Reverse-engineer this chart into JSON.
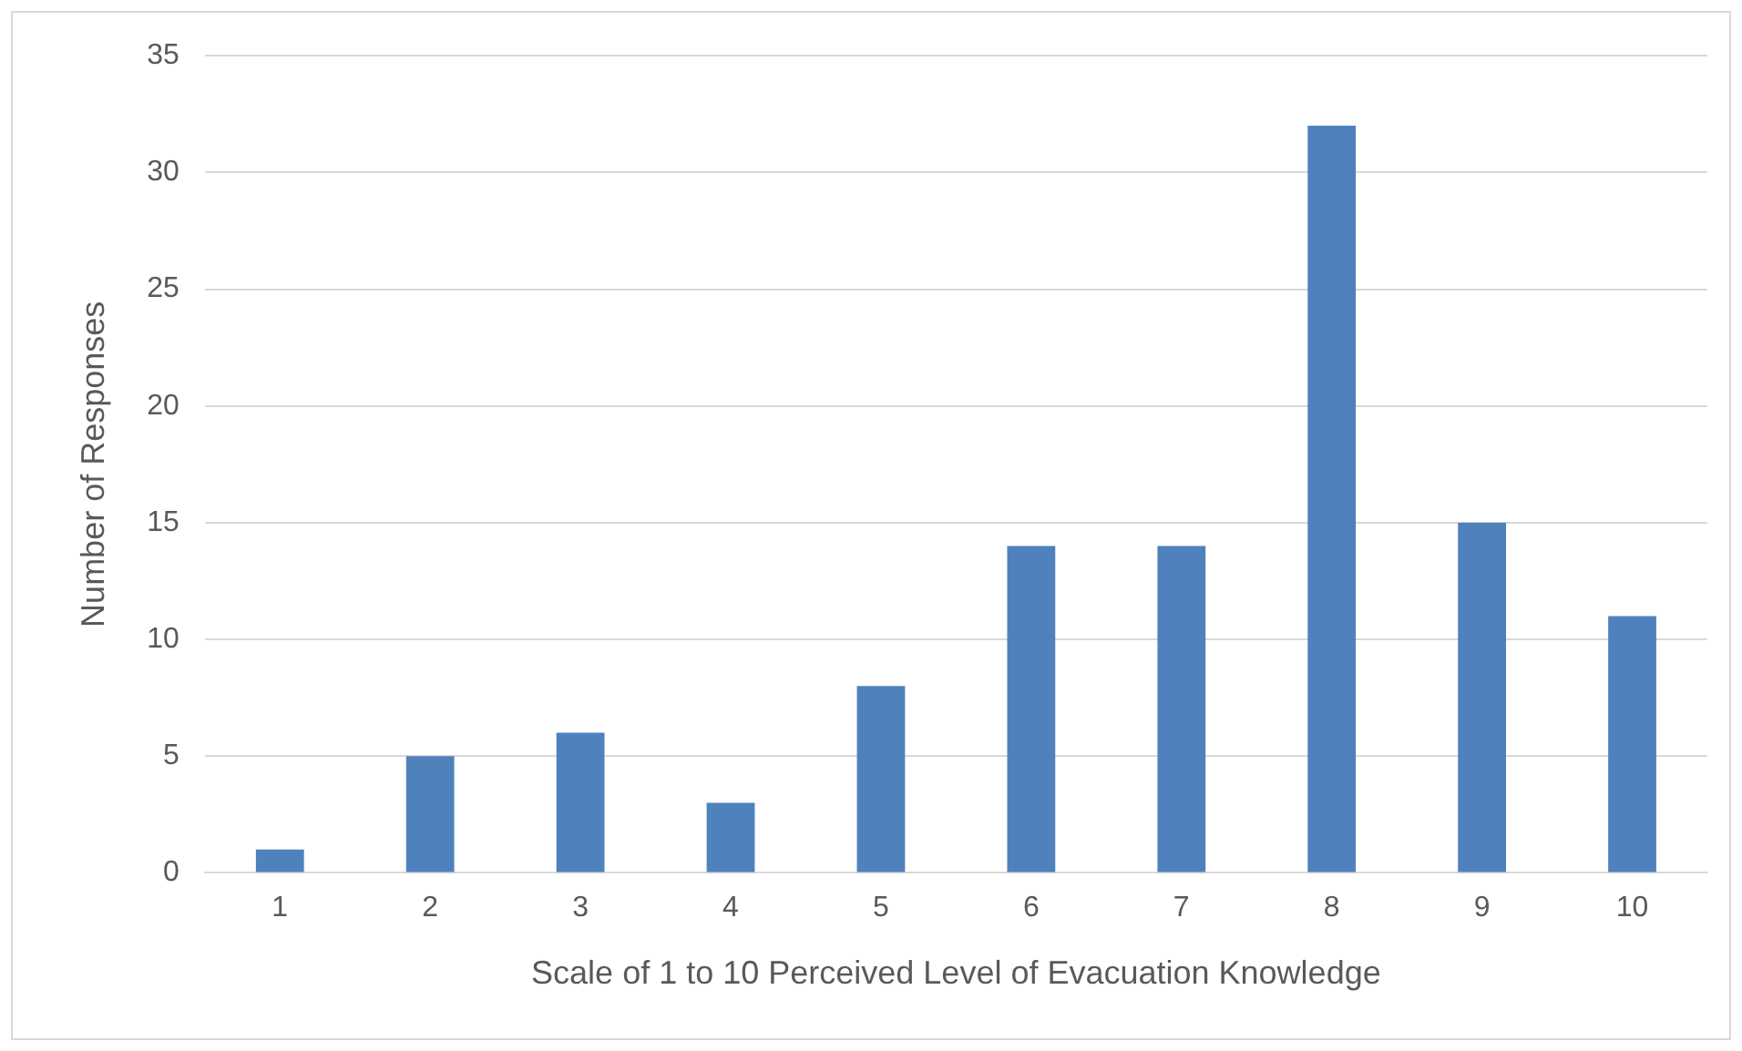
{
  "chart_data": {
    "type": "bar",
    "xlabel": "Scale of 1 to 10 Perceived Level of Evacuation Knowledge",
    "ylabel": "Number of Responses",
    "categories": [
      "1",
      "2",
      "3",
      "4",
      "5",
      "6",
      "7",
      "8",
      "9",
      "10"
    ],
    "values": [
      1,
      5,
      6,
      3,
      8,
      14,
      14,
      32,
      15,
      11
    ],
    "color": "#4f81bd",
    "ylim": [
      0,
      35
    ],
    "yticks": [
      0,
      5,
      10,
      15,
      20,
      25,
      30,
      35
    ],
    "grid": "y",
    "legend": false
  }
}
